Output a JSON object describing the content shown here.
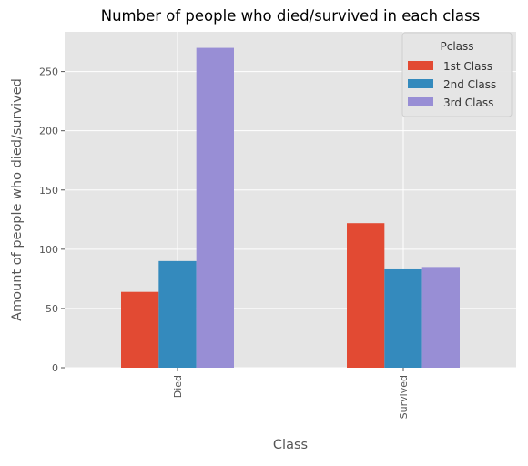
{
  "chart_data": {
    "type": "bar",
    "title": "Number of people who died/survived in each class",
    "xlabel": "Class",
    "ylabel": "Amount of people who died/survived",
    "categories": [
      "Died",
      "Survived"
    ],
    "series": [
      {
        "name": "1st Class",
        "values": [
          64,
          122
        ],
        "color": "#E24A33"
      },
      {
        "name": "2nd Class",
        "values": [
          90,
          83
        ],
        "color": "#348ABD"
      },
      {
        "name": "3rd Class",
        "values": [
          270,
          85
        ],
        "color": "#988ED5"
      }
    ],
    "ylim": [
      0,
      283.5
    ],
    "yticks": [
      0,
      50,
      100,
      150,
      200,
      250
    ],
    "grid": true,
    "legend": {
      "title": "Pclass",
      "placement": "top-right"
    },
    "colors": {
      "background": "#E5E5E5",
      "grid": "#FFFFFF",
      "text": "#555555"
    }
  }
}
